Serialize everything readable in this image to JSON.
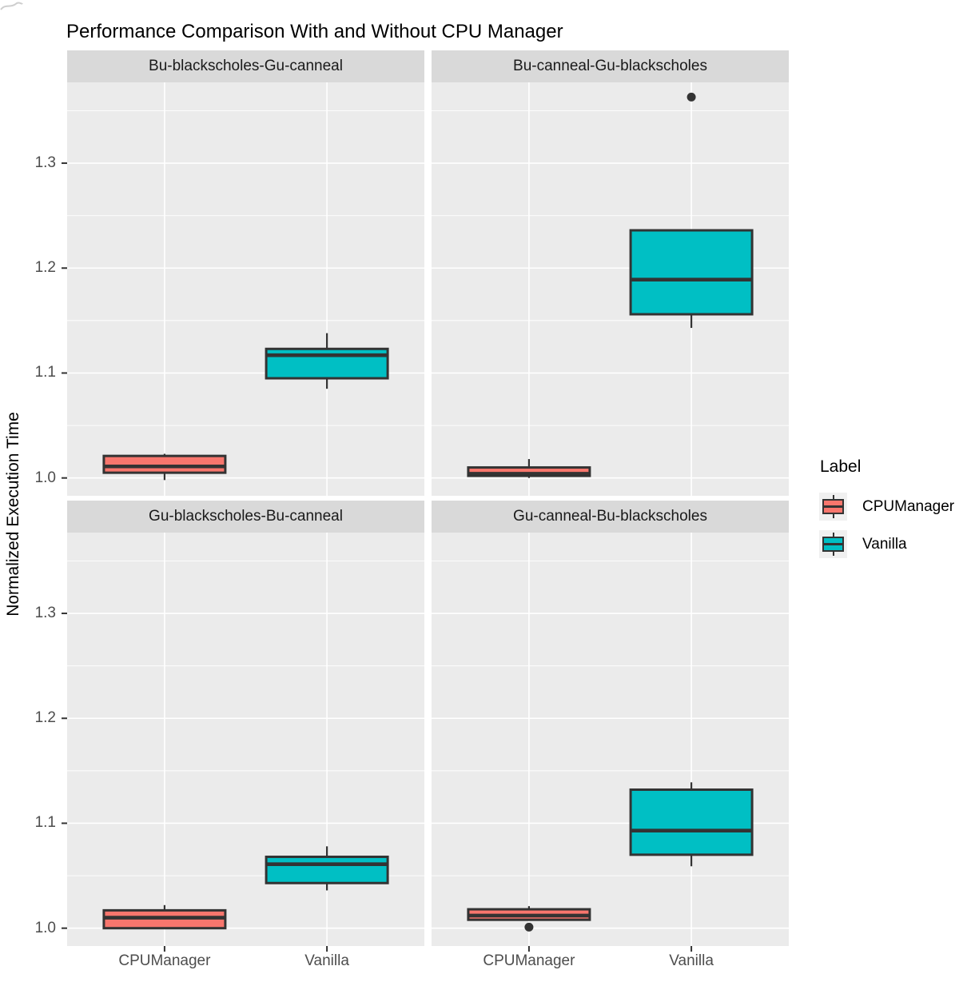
{
  "legend": {
    "title": "Label",
    "items": [
      {
        "label": "CPUManager",
        "color": "#F8766D"
      },
      {
        "label": "Vanilla",
        "color": "#00BFC4"
      }
    ]
  },
  "theme": {
    "panel_bg": "#EBEBEB",
    "strip_bg": "#D9D9D9",
    "gridline": "#FFFFFF",
    "box_stroke": "#333333",
    "outlier_color": "#333333",
    "axis_tick_color": "#333333",
    "axis_text_color": "#4D4D4D",
    "legend_key_bg": "#F0F0F0"
  },
  "chart_data": {
    "type": "boxplot",
    "title": "Performance Comparison With and Without CPU Manager",
    "ylabel": "Normalized Execution Time",
    "xlabel": "",
    "x_categories": [
      "CPUManager",
      "Vanilla"
    ],
    "y_ticks": [
      1.0,
      1.1,
      1.2,
      1.3
    ],
    "y_tick_labels": [
      "1.0",
      "1.1",
      "1.2",
      "1.3"
    ],
    "y_minor_ticks": [
      1.05,
      1.15,
      1.25,
      1.35
    ],
    "ylim": [
      0.983,
      1.377
    ],
    "grid": "on",
    "legend_position": "right",
    "facet_layout": "2x2",
    "panels": [
      {
        "facet": "Bu-blackscholes-Gu-canneal",
        "row": 0,
        "col": 0,
        "boxes": [
          {
            "group": "CPUManager",
            "min": 0.998,
            "q1": 1.005,
            "median": 1.011,
            "q3": 1.021,
            "max": 1.023,
            "outliers": []
          },
          {
            "group": "Vanilla",
            "min": 1.085,
            "q1": 1.095,
            "median": 1.117,
            "q3": 1.123,
            "max": 1.138,
            "outliers": []
          }
        ]
      },
      {
        "facet": "Bu-canneal-Gu-blackscholes",
        "row": 0,
        "col": 1,
        "boxes": [
          {
            "group": "CPUManager",
            "min": 1.0,
            "q1": 1.002,
            "median": 1.004,
            "q3": 1.01,
            "max": 1.018,
            "outliers": []
          },
          {
            "group": "Vanilla",
            "min": 1.143,
            "q1": 1.156,
            "median": 1.189,
            "q3": 1.236,
            "max": 1.236,
            "outliers": [
              1.363
            ]
          }
        ]
      },
      {
        "facet": "Gu-blackscholes-Bu-canneal",
        "row": 1,
        "col": 0,
        "boxes": [
          {
            "group": "CPUManager",
            "min": 1.0,
            "q1": 1.0,
            "median": 1.01,
            "q3": 1.017,
            "max": 1.022,
            "outliers": []
          },
          {
            "group": "Vanilla",
            "min": 1.036,
            "q1": 1.043,
            "median": 1.061,
            "q3": 1.068,
            "max": 1.078,
            "outliers": []
          }
        ]
      },
      {
        "facet": "Gu-canneal-Bu-blackscholes",
        "row": 1,
        "col": 1,
        "boxes": [
          {
            "group": "CPUManager",
            "min": 1.008,
            "q1": 1.008,
            "median": 1.012,
            "q3": 1.018,
            "max": 1.021,
            "outliers": [
              1.001
            ]
          },
          {
            "group": "Vanilla",
            "min": 1.059,
            "q1": 1.07,
            "median": 1.093,
            "q3": 1.132,
            "max": 1.139,
            "outliers": []
          }
        ]
      }
    ]
  }
}
